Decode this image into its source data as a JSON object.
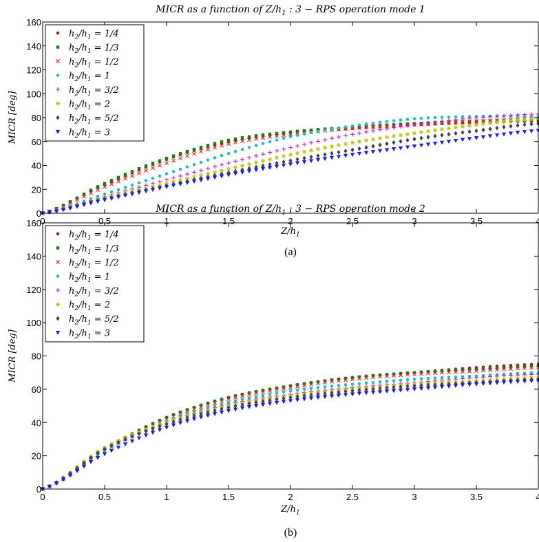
{
  "chart_data": [
    {
      "type": "scatter",
      "title": "MICR as a function of Z/h1 : 3 − RPS operation mode 1",
      "xlabel": "Z/h1",
      "ylabel": "MICR [deg]",
      "caption": "(a)",
      "xlim": [
        0,
        4
      ],
      "ylim": [
        0,
        160
      ],
      "xticks": [
        0,
        0.5,
        1,
        1.5,
        2,
        2.5,
        3,
        3.5,
        4
      ],
      "xtick_labels": [
        "0",
        "0.5",
        "1",
        "1.5",
        "2",
        "2.5",
        "3",
        "3.5",
        "4"
      ],
      "yticks": [
        0,
        20,
        40,
        60,
        80,
        100,
        120,
        140,
        160
      ],
      "ytick_labels": [
        "0",
        "20",
        "40",
        "60",
        "80",
        "100",
        "120",
        "140",
        "160"
      ],
      "grid": false,
      "legend_position": "top-left",
      "x": [
        0,
        0.5,
        1,
        1.5,
        2,
        2.5,
        3,
        3.5,
        4
      ],
      "series": [
        {
          "name": "h2/h1 = 1/4",
          "color": "#a61c1c",
          "marker": "dot",
          "values": [
            0,
            24,
            45,
            60,
            67,
            71,
            74,
            76,
            77
          ]
        },
        {
          "name": "h2/h1 = 1/3",
          "color": "#1a7a1a",
          "marker": "square",
          "values": [
            0,
            25,
            46,
            61,
            68,
            72,
            75,
            77,
            78
          ]
        },
        {
          "name": "h2/h1 = 1/2",
          "color": "#ff1a1a",
          "marker": "x",
          "values": [
            0,
            22,
            42,
            58,
            66,
            71,
            74,
            77,
            79
          ]
        },
        {
          "name": "h2/h1 = 1",
          "color": "#19c3c3",
          "marker": "dot",
          "values": [
            0,
            16,
            33,
            50,
            64,
            73,
            79,
            81,
            81
          ]
        },
        {
          "name": "h2/h1 = 3/2",
          "color": "#cc19cc",
          "marker": "plus",
          "values": [
            0,
            14,
            28,
            42,
            55,
            66,
            74,
            80,
            83
          ]
        },
        {
          "name": "h2/h1 = 2",
          "color": "#c3c319",
          "marker": "star",
          "values": [
            0,
            13,
            25,
            37,
            49,
            59,
            67,
            74,
            79
          ]
        },
        {
          "name": "h2/h1 = 5/2",
          "color": "#444444",
          "marker": "diamond",
          "values": [
            0,
            12,
            23,
            34,
            44,
            53,
            62,
            69,
            75
          ]
        },
        {
          "name": "h2/h1 = 3",
          "color": "#1a1aff",
          "marker": "triangle",
          "values": [
            0,
            11,
            22,
            32,
            41,
            49,
            56,
            63,
            69
          ]
        }
      ]
    },
    {
      "type": "scatter",
      "title": "MICR as a function of Z/h1 : 3 − RPS operation mode 2",
      "xlabel": "Z/h1",
      "ylabel": "MICR [deg]",
      "caption": "(b)",
      "xlim": [
        0,
        4
      ],
      "ylim": [
        0,
        160
      ],
      "xticks": [
        0,
        0.5,
        1,
        1.5,
        2,
        2.5,
        3,
        3.5,
        4
      ],
      "xtick_labels": [
        "0",
        "0.5",
        "1",
        "1.5",
        "2",
        "2.5",
        "3",
        "3.5",
        "4"
      ],
      "yticks": [
        0,
        20,
        40,
        60,
        80,
        100,
        120,
        140,
        160
      ],
      "ytick_labels": [
        "0",
        "20",
        "40",
        "60",
        "80",
        "100",
        "120",
        "140",
        "160"
      ],
      "grid": false,
      "legend_position": "top-left",
      "x": [
        0,
        0.5,
        1,
        1.5,
        2,
        2.5,
        3,
        3.5,
        4
      ],
      "series": [
        {
          "name": "h2/h1 = 1/4",
          "color": "#a61c1c",
          "marker": "dot",
          "values": [
            0,
            24,
            43,
            55,
            62,
            67,
            70,
            73,
            75
          ]
        },
        {
          "name": "h2/h1 = 1/3",
          "color": "#1a7a1a",
          "marker": "square",
          "values": [
            0,
            24,
            43,
            55,
            62,
            67,
            70,
            72,
            74
          ]
        },
        {
          "name": "h2/h1 = 1/2",
          "color": "#ff1a1a",
          "marker": "x",
          "values": [
            0,
            23,
            42,
            54,
            61,
            66,
            69,
            71,
            73
          ]
        },
        {
          "name": "h2/h1 = 1",
          "color": "#19c3c3",
          "marker": "dot",
          "values": [
            0,
            23,
            41,
            52,
            59,
            63,
            66,
            68,
            70
          ]
        },
        {
          "name": "h2/h1 = 3/2",
          "color": "#cc19cc",
          "marker": "plus",
          "values": [
            0,
            24,
            40,
            51,
            57,
            61,
            64,
            67,
            69
          ]
        },
        {
          "name": "h2/h1 = 2",
          "color": "#c3c319",
          "marker": "star",
          "values": [
            0,
            25,
            40,
            50,
            56,
            60,
            63,
            65,
            67
          ]
        },
        {
          "name": "h2/h1 = 5/2",
          "color": "#444444",
          "marker": "diamond",
          "values": [
            0,
            24,
            39,
            49,
            55,
            59,
            62,
            64,
            66
          ]
        },
        {
          "name": "h2/h1 = 3",
          "color": "#1a1aff",
          "marker": "triangle",
          "values": [
            0,
            21,
            37,
            47,
            53,
            57,
            60,
            63,
            65
          ]
        }
      ]
    }
  ]
}
